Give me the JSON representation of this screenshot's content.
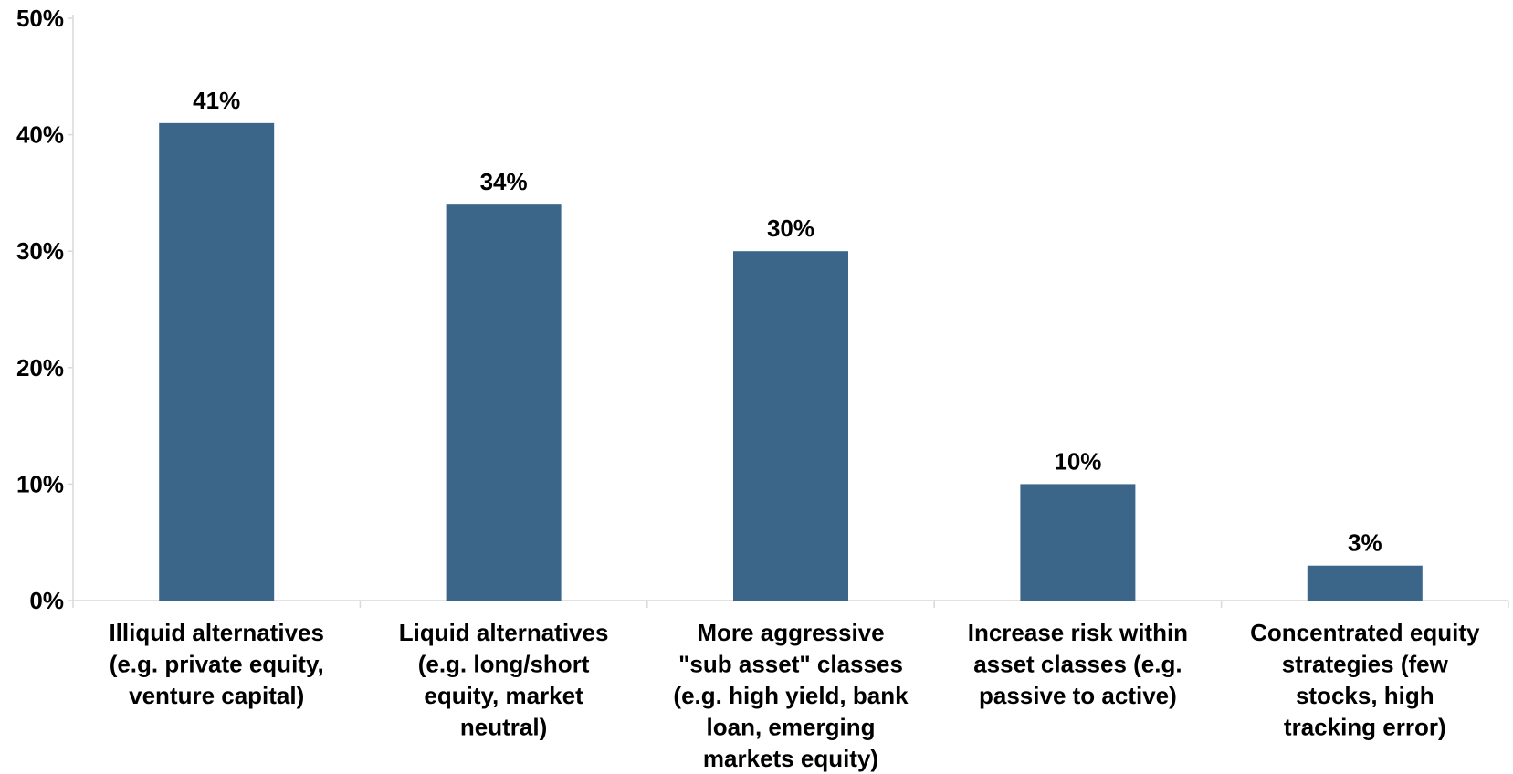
{
  "chart_data": {
    "type": "bar",
    "categories": [
      [
        "Illiquid alternatives",
        "(e.g. private equity,",
        "venture capital)"
      ],
      [
        "Liquid alternatives",
        "(e.g. long/short",
        "equity, market",
        "neutral)"
      ],
      [
        "More aggressive",
        "\"sub asset\" classes",
        "(e.g. high yield, bank",
        "loan, emerging",
        "markets equity)"
      ],
      [
        "Increase risk within",
        "asset classes (e.g.",
        "passive to active)"
      ],
      [
        "Concentrated equity",
        "strategies (few",
        "stocks, high",
        "tracking error)"
      ]
    ],
    "values": [
      41,
      34,
      30,
      10,
      3
    ],
    "data_labels": [
      "41%",
      "34%",
      "30%",
      "10%",
      "3%"
    ],
    "y_ticks": [
      {
        "value": 0,
        "label": "0%"
      },
      {
        "value": 10,
        "label": "10%"
      },
      {
        "value": 20,
        "label": "20%"
      },
      {
        "value": 30,
        "label": "30%"
      },
      {
        "value": 40,
        "label": "40%"
      },
      {
        "value": 50,
        "label": "50%"
      }
    ],
    "ylim": [
      0,
      50
    ],
    "grid": false,
    "legend": "none",
    "colors": {
      "bar": "#3b6689",
      "axis": "#d9d9d9",
      "text": "#000000"
    }
  }
}
